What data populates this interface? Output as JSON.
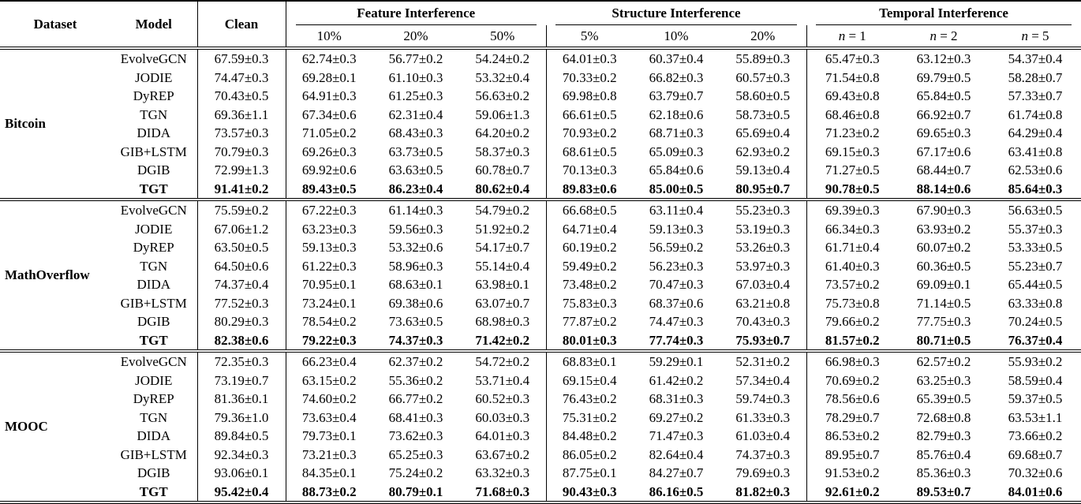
{
  "table": {
    "headers": {
      "dataset": "Dataset",
      "model": "Model",
      "clean": "Clean"
    },
    "groups": [
      {
        "label": "Feature Interference",
        "subs": [
          "10%",
          "20%",
          "50%"
        ]
      },
      {
        "label": "Structure Interference",
        "subs": [
          "5%",
          "10%",
          "20%"
        ]
      },
      {
        "label": "Temporal Interference",
        "subs_math": [
          {
            "sym": "n",
            "eq": " = 1"
          },
          {
            "sym": "n",
            "eq": " = 2"
          },
          {
            "sym": "n",
            "eq": " = 5"
          }
        ]
      }
    ],
    "sections": [
      {
        "dataset": "Bitcoin",
        "rows": [
          {
            "model": "EvolveGCN",
            "bold": false,
            "values": [
              "67.59±0.3",
              "62.74±0.3",
              "56.77±0.2",
              "54.24±0.2",
              "64.01±0.3",
              "60.37±0.4",
              "55.89±0.3",
              "65.47±0.3",
              "63.12±0.3",
              "54.37±0.4"
            ]
          },
          {
            "model": "JODIE",
            "bold": false,
            "values": [
              "74.47±0.3",
              "69.28±0.1",
              "61.10±0.3",
              "53.32±0.4",
              "70.33±0.2",
              "66.82±0.3",
              "60.57±0.3",
              "71.54±0.8",
              "69.79±0.5",
              "58.28±0.7"
            ]
          },
          {
            "model": "DyREP",
            "bold": false,
            "values": [
              "70.43±0.5",
              "64.91±0.3",
              "61.25±0.3",
              "56.63±0.2",
              "69.98±0.8",
              "63.79±0.7",
              "58.60±0.5",
              "69.43±0.8",
              "65.84±0.5",
              "57.33±0.7"
            ]
          },
          {
            "model": "TGN",
            "bold": false,
            "values": [
              "69.36±1.1",
              "67.34±0.6",
              "62.31±0.4",
              "59.06±1.3",
              "66.61±0.5",
              "62.18±0.6",
              "58.73±0.5",
              "68.46±0.8",
              "66.92±0.7",
              "61.74±0.8"
            ]
          },
          {
            "model": "DIDA",
            "bold": false,
            "values": [
              "73.57±0.3",
              "71.05±0.2",
              "68.43±0.3",
              "64.20±0.2",
              "70.93±0.2",
              "68.71±0.3",
              "65.69±0.4",
              "71.23±0.2",
              "69.65±0.3",
              "64.29±0.4"
            ]
          },
          {
            "model": "GIB+LSTM",
            "bold": false,
            "values": [
              "70.79±0.3",
              "69.26±0.3",
              "63.73±0.5",
              "58.37±0.3",
              "68.61±0.5",
              "65.09±0.3",
              "62.93±0.2",
              "69.15±0.3",
              "67.17±0.6",
              "63.41±0.8"
            ]
          },
          {
            "model": "DGIB",
            "bold": false,
            "values": [
              "72.99±1.3",
              "69.92±0.6",
              "63.63±0.5",
              "60.78±0.7",
              "70.13±0.3",
              "65.84±0.6",
              "59.13±0.4",
              "71.27±0.5",
              "68.44±0.7",
              "62.53±0.6"
            ]
          },
          {
            "model": "TGT",
            "bold": true,
            "values": [
              "91.41±0.2",
              "89.43±0.5",
              "86.23±0.4",
              "80.62±0.4",
              "89.83±0.6",
              "85.00±0.5",
              "80.95±0.7",
              "90.78±0.5",
              "88.14±0.6",
              "85.64±0.3"
            ]
          }
        ]
      },
      {
        "dataset": "MathOverflow",
        "rows": [
          {
            "model": "EvolveGCN",
            "bold": false,
            "values": [
              "75.59±0.2",
              "67.22±0.3",
              "61.14±0.3",
              "54.79±0.2",
              "66.68±0.5",
              "63.11±0.4",
              "55.23±0.3",
              "69.39±0.3",
              "67.90±0.3",
              "56.63±0.5"
            ]
          },
          {
            "model": "JODIE",
            "bold": false,
            "values": [
              "67.06±1.2",
              "63.23±0.3",
              "59.56±0.3",
              "51.92±0.2",
              "64.71±0.4",
              "59.13±0.3",
              "53.19±0.3",
              "66.34±0.3",
              "63.93±0.2",
              "55.37±0.3"
            ]
          },
          {
            "model": "DyREP",
            "bold": false,
            "values": [
              "63.50±0.5",
              "59.13±0.3",
              "53.32±0.6",
              "54.17±0.7",
              "60.19±0.2",
              "56.59±0.2",
              "53.26±0.3",
              "61.71±0.4",
              "60.07±0.2",
              "53.33±0.5"
            ]
          },
          {
            "model": "TGN",
            "bold": false,
            "values": [
              "64.50±0.6",
              "61.22±0.3",
              "58.96±0.3",
              "55.14±0.4",
              "59.49±0.2",
              "56.23±0.3",
              "53.97±0.3",
              "61.40±0.3",
              "60.36±0.5",
              "55.23±0.7"
            ]
          },
          {
            "model": "DIDA",
            "bold": false,
            "values": [
              "74.37±0.4",
              "70.95±0.1",
              "68.63±0.1",
              "63.98±0.1",
              "73.48±0.2",
              "70.47±0.3",
              "67.03±0.4",
              "73.57±0.2",
              "69.09±0.1",
              "65.44±0.5"
            ]
          },
          {
            "model": "GIB+LSTM",
            "bold": false,
            "values": [
              "77.52±0.3",
              "73.24±0.1",
              "69.38±0.6",
              "63.07±0.7",
              "75.83±0.3",
              "68.37±0.6",
              "63.21±0.8",
              "75.73±0.8",
              "71.14±0.5",
              "63.33±0.8"
            ]
          },
          {
            "model": "DGIB",
            "bold": false,
            "values": [
              "80.29±0.3",
              "78.54±0.2",
              "73.63±0.5",
              "68.98±0.3",
              "77.87±0.2",
              "74.47±0.3",
              "70.43±0.3",
              "79.66±0.2",
              "77.75±0.3",
              "70.24±0.5"
            ]
          },
          {
            "model": "TGT",
            "bold": true,
            "values": [
              "82.38±0.6",
              "79.22±0.3",
              "74.37±0.3",
              "71.42±0.2",
              "80.01±0.3",
              "77.74±0.3",
              "75.93±0.7",
              "81.57±0.2",
              "80.71±0.5",
              "76.37±0.4"
            ]
          }
        ]
      },
      {
        "dataset": "MOOC",
        "rows": [
          {
            "model": "EvolveGCN",
            "bold": false,
            "values": [
              "72.35±0.3",
              "66.23±0.4",
              "62.37±0.2",
              "54.72±0.2",
              "68.83±0.1",
              "59.29±0.1",
              "52.31±0.2",
              "66.98±0.3",
              "62.57±0.2",
              "55.93±0.2"
            ]
          },
          {
            "model": "JODIE",
            "bold": false,
            "values": [
              "73.19±0.7",
              "63.15±0.2",
              "55.36±0.2",
              "53.71±0.4",
              "69.15±0.4",
              "61.42±0.2",
              "57.34±0.4",
              "70.69±0.2",
              "63.25±0.3",
              "58.59±0.4"
            ]
          },
          {
            "model": "DyREP",
            "bold": false,
            "values": [
              "81.36±0.1",
              "74.60±0.2",
              "66.77±0.2",
              "60.52±0.3",
              "76.43±0.2",
              "68.31±0.3",
              "59.74±0.3",
              "78.56±0.6",
              "65.39±0.5",
              "59.37±0.5"
            ]
          },
          {
            "model": "TGN",
            "bold": false,
            "values": [
              "79.36±1.0",
              "73.63±0.4",
              "68.41±0.3",
              "60.03±0.3",
              "75.31±0.2",
              "69.27±0.2",
              "61.33±0.3",
              "78.29±0.7",
              "72.68±0.8",
              "63.53±1.1"
            ]
          },
          {
            "model": "DIDA",
            "bold": false,
            "values": [
              "89.84±0.5",
              "79.73±0.1",
              "73.62±0.3",
              "64.01±0.3",
              "84.48±0.2",
              "71.47±0.3",
              "61.03±0.4",
              "86.53±0.2",
              "82.79±0.3",
              "73.66±0.2"
            ]
          },
          {
            "model": "GIB+LSTM",
            "bold": false,
            "values": [
              "92.34±0.3",
              "73.21±0.3",
              "65.25±0.3",
              "63.67±0.2",
              "86.05±0.2",
              "82.64±0.4",
              "74.37±0.3",
              "89.95±0.7",
              "85.76±0.4",
              "69.68±0.7"
            ]
          },
          {
            "model": "DGIB",
            "bold": false,
            "values": [
              "93.06±0.1",
              "84.35±0.1",
              "75.24±0.2",
              "63.32±0.3",
              "87.75±0.1",
              "84.27±0.7",
              "79.69±0.3",
              "91.53±0.2",
              "85.36±0.3",
              "70.32±0.6"
            ]
          },
          {
            "model": "TGT",
            "bold": true,
            "values": [
              "95.42±0.4",
              "88.73±0.2",
              "80.79±0.1",
              "71.68±0.3",
              "90.43±0.3",
              "86.16±0.5",
              "81.82±0.3",
              "92.61±0.2",
              "89.53±0.7",
              "84.01±0.6"
            ]
          }
        ]
      }
    ]
  }
}
